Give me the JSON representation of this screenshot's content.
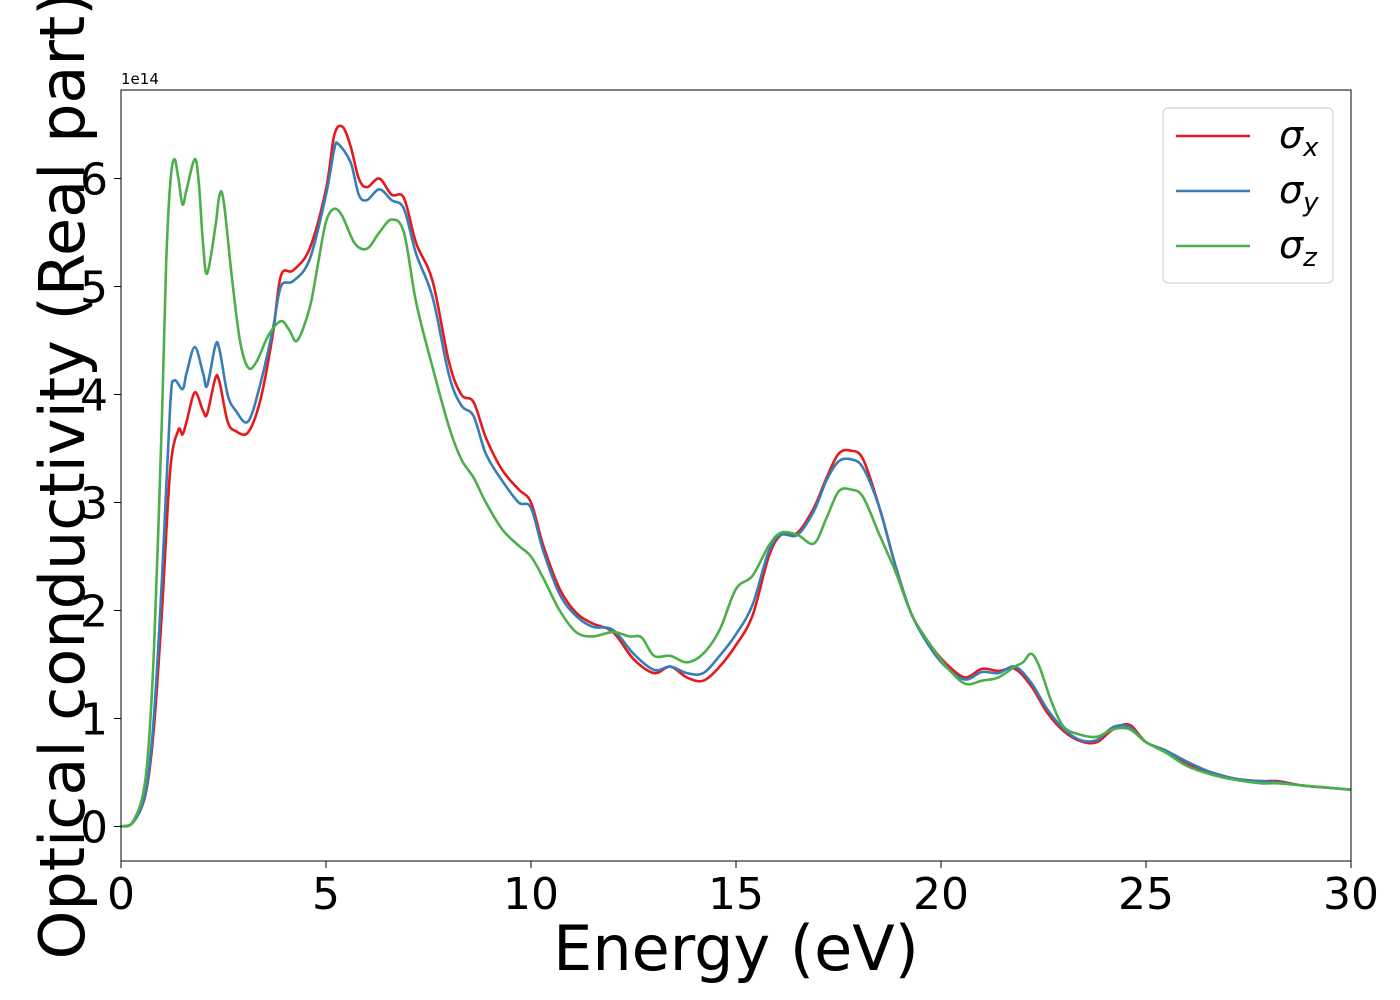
{
  "chart_data": {
    "type": "line",
    "xlabel": "Energy (eV)",
    "ylabel": "Optical conductivity (Real part)",
    "offset_text": "1e14",
    "xlim": [
      0,
      30
    ],
    "ylim": [
      -0.32,
      6.82
    ],
    "xticks": [
      0,
      5,
      10,
      15,
      20,
      25,
      30
    ],
    "xtick_labels": [
      "0",
      "5",
      "10",
      "15",
      "20",
      "25",
      "30"
    ],
    "yticks": [
      0,
      1,
      2,
      3,
      4,
      5,
      6
    ],
    "ytick_labels": [
      "0",
      "1",
      "2",
      "3",
      "4",
      "5",
      "6"
    ],
    "grid": false,
    "legend": "top-right",
    "series": [
      {
        "name": "σx",
        "symbol": "σ",
        "sub": "x",
        "color": "#e41a1c",
        "points": [
          [
            0,
            0
          ],
          [
            0.3,
            0.04
          ],
          [
            0.6,
            0.3
          ],
          [
            0.8,
            0.9
          ],
          [
            1.0,
            2.0
          ],
          [
            1.2,
            3.3
          ],
          [
            1.4,
            3.67
          ],
          [
            1.5,
            3.63
          ],
          [
            1.6,
            3.75
          ],
          [
            1.8,
            4.02
          ],
          [
            2.0,
            3.85
          ],
          [
            2.1,
            3.82
          ],
          [
            2.3,
            4.15
          ],
          [
            2.4,
            4.12
          ],
          [
            2.6,
            3.75
          ],
          [
            2.8,
            3.66
          ],
          [
            3.1,
            3.65
          ],
          [
            3.4,
            3.95
          ],
          [
            3.7,
            4.55
          ],
          [
            3.9,
            5.1
          ],
          [
            4.2,
            5.15
          ],
          [
            4.6,
            5.35
          ],
          [
            5.0,
            5.9
          ],
          [
            5.2,
            6.4
          ],
          [
            5.4,
            6.48
          ],
          [
            5.6,
            6.3
          ],
          [
            5.8,
            6.0
          ],
          [
            6.0,
            5.92
          ],
          [
            6.3,
            6.0
          ],
          [
            6.6,
            5.85
          ],
          [
            6.9,
            5.82
          ],
          [
            7.2,
            5.4
          ],
          [
            7.6,
            5.05
          ],
          [
            8.0,
            4.3
          ],
          [
            8.3,
            4.0
          ],
          [
            8.6,
            3.93
          ],
          [
            8.9,
            3.6
          ],
          [
            9.3,
            3.3
          ],
          [
            9.7,
            3.12
          ],
          [
            10.0,
            3.0
          ],
          [
            10.3,
            2.6
          ],
          [
            10.7,
            2.2
          ],
          [
            11.1,
            1.98
          ],
          [
            11.5,
            1.88
          ],
          [
            12.0,
            1.8
          ],
          [
            12.5,
            1.55
          ],
          [
            13.0,
            1.42
          ],
          [
            13.4,
            1.48
          ],
          [
            13.8,
            1.38
          ],
          [
            14.2,
            1.35
          ],
          [
            14.6,
            1.48
          ],
          [
            15.0,
            1.68
          ],
          [
            15.4,
            1.95
          ],
          [
            15.8,
            2.5
          ],
          [
            16.1,
            2.7
          ],
          [
            16.5,
            2.72
          ],
          [
            16.9,
            2.95
          ],
          [
            17.2,
            3.22
          ],
          [
            17.5,
            3.45
          ],
          [
            17.8,
            3.48
          ],
          [
            18.1,
            3.4
          ],
          [
            18.5,
            2.95
          ],
          [
            18.9,
            2.4
          ],
          [
            19.3,
            1.95
          ],
          [
            19.8,
            1.65
          ],
          [
            20.2,
            1.48
          ],
          [
            20.6,
            1.38
          ],
          [
            21.0,
            1.46
          ],
          [
            21.4,
            1.44
          ],
          [
            21.8,
            1.46
          ],
          [
            22.2,
            1.3
          ],
          [
            22.6,
            1.05
          ],
          [
            23.0,
            0.88
          ],
          [
            23.4,
            0.79
          ],
          [
            23.8,
            0.78
          ],
          [
            24.2,
            0.9
          ],
          [
            24.6,
            0.94
          ],
          [
            25.0,
            0.78
          ],
          [
            25.5,
            0.7
          ],
          [
            26.0,
            0.58
          ],
          [
            26.6,
            0.5
          ],
          [
            27.2,
            0.44
          ],
          [
            27.8,
            0.42
          ],
          [
            28.2,
            0.42
          ],
          [
            28.8,
            0.38
          ],
          [
            29.4,
            0.36
          ],
          [
            30,
            0.34
          ]
        ]
      },
      {
        "name": "σy",
        "symbol": "σ",
        "sub": "y",
        "color": "#377eb8",
        "points": [
          [
            0,
            0
          ],
          [
            0.3,
            0.04
          ],
          [
            0.6,
            0.32
          ],
          [
            0.8,
            1.0
          ],
          [
            1.0,
            2.3
          ],
          [
            1.2,
            3.9
          ],
          [
            1.3,
            4.13
          ],
          [
            1.5,
            4.05
          ],
          [
            1.6,
            4.2
          ],
          [
            1.8,
            4.44
          ],
          [
            2.0,
            4.2
          ],
          [
            2.1,
            4.08
          ],
          [
            2.3,
            4.45
          ],
          [
            2.4,
            4.42
          ],
          [
            2.6,
            4.0
          ],
          [
            2.8,
            3.85
          ],
          [
            3.1,
            3.75
          ],
          [
            3.4,
            4.1
          ],
          [
            3.7,
            4.6
          ],
          [
            3.9,
            5.0
          ],
          [
            4.2,
            5.05
          ],
          [
            4.6,
            5.25
          ],
          [
            5.0,
            5.85
          ],
          [
            5.2,
            6.27
          ],
          [
            5.3,
            6.32
          ],
          [
            5.6,
            6.15
          ],
          [
            5.8,
            5.85
          ],
          [
            6.0,
            5.8
          ],
          [
            6.3,
            5.9
          ],
          [
            6.6,
            5.8
          ],
          [
            6.9,
            5.72
          ],
          [
            7.2,
            5.3
          ],
          [
            7.6,
            4.9
          ],
          [
            8.0,
            4.18
          ],
          [
            8.3,
            3.9
          ],
          [
            8.6,
            3.8
          ],
          [
            8.9,
            3.45
          ],
          [
            9.3,
            3.2
          ],
          [
            9.7,
            3.0
          ],
          [
            10.0,
            2.95
          ],
          [
            10.3,
            2.55
          ],
          [
            10.7,
            2.15
          ],
          [
            11.1,
            1.95
          ],
          [
            11.5,
            1.85
          ],
          [
            12.0,
            1.82
          ],
          [
            12.5,
            1.6
          ],
          [
            13.0,
            1.45
          ],
          [
            13.4,
            1.48
          ],
          [
            13.8,
            1.42
          ],
          [
            14.2,
            1.42
          ],
          [
            14.6,
            1.58
          ],
          [
            15.0,
            1.78
          ],
          [
            15.4,
            2.05
          ],
          [
            15.8,
            2.55
          ],
          [
            16.1,
            2.7
          ],
          [
            16.5,
            2.7
          ],
          [
            16.9,
            2.92
          ],
          [
            17.2,
            3.2
          ],
          [
            17.5,
            3.38
          ],
          [
            17.8,
            3.4
          ],
          [
            18.1,
            3.32
          ],
          [
            18.5,
            2.95
          ],
          [
            18.9,
            2.4
          ],
          [
            19.3,
            1.95
          ],
          [
            19.8,
            1.62
          ],
          [
            20.2,
            1.45
          ],
          [
            20.6,
            1.36
          ],
          [
            21.0,
            1.43
          ],
          [
            21.4,
            1.42
          ],
          [
            21.8,
            1.48
          ],
          [
            22.2,
            1.33
          ],
          [
            22.6,
            1.08
          ],
          [
            23.0,
            0.9
          ],
          [
            23.4,
            0.8
          ],
          [
            23.8,
            0.8
          ],
          [
            24.2,
            0.92
          ],
          [
            24.6,
            0.92
          ],
          [
            25.0,
            0.78
          ],
          [
            25.5,
            0.7
          ],
          [
            26.0,
            0.6
          ],
          [
            26.6,
            0.5
          ],
          [
            27.2,
            0.44
          ],
          [
            27.8,
            0.42
          ],
          [
            28.2,
            0.41
          ],
          [
            28.8,
            0.38
          ],
          [
            29.4,
            0.36
          ],
          [
            30,
            0.34
          ]
        ]
      },
      {
        "name": "σz",
        "symbol": "σ",
        "sub": "z",
        "color": "#4daf4a",
        "points": [
          [
            0,
            0
          ],
          [
            0.3,
            0.05
          ],
          [
            0.6,
            0.45
          ],
          [
            0.8,
            1.6
          ],
          [
            1.0,
            3.8
          ],
          [
            1.1,
            5.2
          ],
          [
            1.2,
            5.95
          ],
          [
            1.3,
            6.18
          ],
          [
            1.4,
            6.0
          ],
          [
            1.5,
            5.76
          ],
          [
            1.6,
            5.9
          ],
          [
            1.8,
            6.18
          ],
          [
            1.9,
            5.95
          ],
          [
            2.0,
            5.4
          ],
          [
            2.1,
            5.12
          ],
          [
            2.3,
            5.55
          ],
          [
            2.4,
            5.84
          ],
          [
            2.5,
            5.8
          ],
          [
            2.7,
            5.1
          ],
          [
            2.9,
            4.5
          ],
          [
            3.1,
            4.25
          ],
          [
            3.3,
            4.3
          ],
          [
            3.6,
            4.55
          ],
          [
            3.9,
            4.68
          ],
          [
            4.1,
            4.6
          ],
          [
            4.3,
            4.5
          ],
          [
            4.6,
            4.8
          ],
          [
            4.8,
            5.2
          ],
          [
            5.0,
            5.6
          ],
          [
            5.2,
            5.72
          ],
          [
            5.4,
            5.65
          ],
          [
            5.7,
            5.4
          ],
          [
            6.0,
            5.35
          ],
          [
            6.3,
            5.5
          ],
          [
            6.6,
            5.62
          ],
          [
            6.9,
            5.5
          ],
          [
            7.2,
            4.85
          ],
          [
            7.6,
            4.25
          ],
          [
            8.0,
            3.7
          ],
          [
            8.3,
            3.4
          ],
          [
            8.6,
            3.23
          ],
          [
            8.9,
            3.0
          ],
          [
            9.3,
            2.75
          ],
          [
            9.7,
            2.6
          ],
          [
            10.0,
            2.5
          ],
          [
            10.3,
            2.3
          ],
          [
            10.7,
            2.0
          ],
          [
            11.1,
            1.8
          ],
          [
            11.5,
            1.76
          ],
          [
            12.0,
            1.8
          ],
          [
            12.4,
            1.76
          ],
          [
            12.7,
            1.75
          ],
          [
            13.0,
            1.58
          ],
          [
            13.4,
            1.58
          ],
          [
            13.8,
            1.52
          ],
          [
            14.2,
            1.6
          ],
          [
            14.6,
            1.82
          ],
          [
            15.0,
            2.2
          ],
          [
            15.4,
            2.32
          ],
          [
            15.8,
            2.6
          ],
          [
            16.1,
            2.72
          ],
          [
            16.5,
            2.7
          ],
          [
            16.9,
            2.62
          ],
          [
            17.2,
            2.85
          ],
          [
            17.5,
            3.1
          ],
          [
            17.8,
            3.12
          ],
          [
            18.1,
            3.05
          ],
          [
            18.5,
            2.7
          ],
          [
            18.9,
            2.35
          ],
          [
            19.3,
            1.95
          ],
          [
            19.8,
            1.65
          ],
          [
            20.2,
            1.45
          ],
          [
            20.6,
            1.32
          ],
          [
            21.0,
            1.35
          ],
          [
            21.4,
            1.38
          ],
          [
            21.8,
            1.48
          ],
          [
            22.0,
            1.52
          ],
          [
            22.2,
            1.6
          ],
          [
            22.4,
            1.48
          ],
          [
            22.7,
            1.15
          ],
          [
            23.0,
            0.92
          ],
          [
            23.4,
            0.85
          ],
          [
            23.8,
            0.83
          ],
          [
            24.2,
            0.9
          ],
          [
            24.6,
            0.9
          ],
          [
            25.0,
            0.78
          ],
          [
            25.5,
            0.68
          ],
          [
            26.0,
            0.56
          ],
          [
            26.6,
            0.48
          ],
          [
            27.2,
            0.43
          ],
          [
            27.8,
            0.4
          ],
          [
            28.2,
            0.4
          ],
          [
            28.8,
            0.38
          ],
          [
            29.4,
            0.36
          ],
          [
            30,
            0.34
          ]
        ]
      }
    ]
  }
}
